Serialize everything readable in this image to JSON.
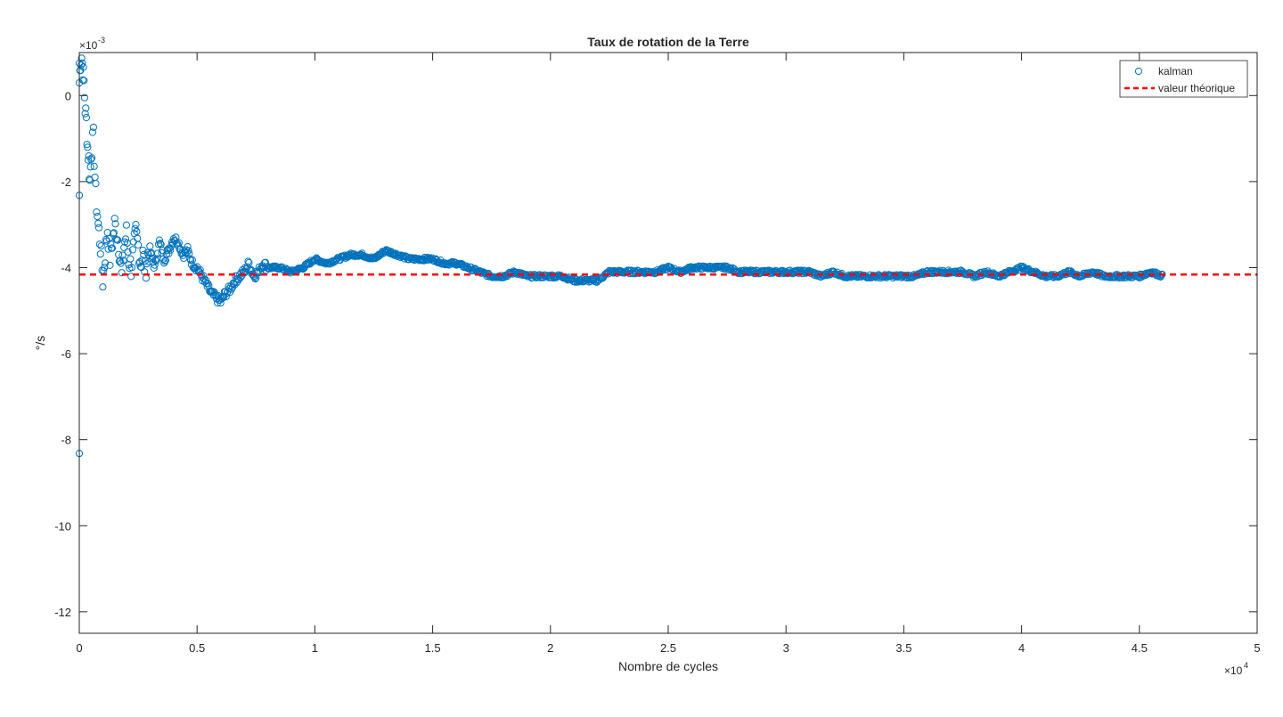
{
  "chart_data": {
    "type": "scatter",
    "title": "Taux de rotation de la Terre",
    "xlabel": "Nombre de cycles",
    "ylabel": "°/s",
    "xlim": [
      0,
      50000
    ],
    "ylim": [
      -0.0125,
      0.001
    ],
    "x_exponent_base": "×10",
    "x_exponent_power": "4",
    "y_exponent_base": "×10",
    "y_exponent_power": "-3",
    "x_tick_values": [
      0,
      5000,
      10000,
      15000,
      20000,
      25000,
      30000,
      35000,
      40000,
      45000,
      50000
    ],
    "x_tick_labels": [
      "0",
      "0.5",
      "1",
      "1.5",
      "2",
      "2.5",
      "3",
      "3.5",
      "4",
      "4.5",
      "5"
    ],
    "y_tick_values": [
      0,
      -0.002,
      -0.004,
      -0.006,
      -0.008,
      -0.01,
      -0.012
    ],
    "y_tick_labels": [
      "0",
      "-2",
      "-4",
      "-6",
      "-8",
      "-10",
      "-12"
    ],
    "grid": false,
    "legend_position": "top-right",
    "colors": {
      "kalman": "#0072BD",
      "theory": "#FF0000",
      "axis": "#262626"
    },
    "series": [
      {
        "name": "kalman",
        "marker": "circle",
        "outliers": [
          {
            "x": 0,
            "y": -0.00832
          },
          {
            "x": 0,
            "y": -0.00232
          },
          {
            "x": 0,
            "y": 0.00075
          }
        ],
        "x": [
          0,
          50,
          100,
          150,
          200,
          250,
          300,
          350,
          400,
          450,
          500,
          600,
          700,
          800,
          900,
          1000,
          1100,
          1200,
          1300,
          1400,
          1500,
          1600,
          1700,
          1800,
          1900,
          2000,
          2100,
          2200,
          2300,
          2400,
          2500,
          2600,
          2700,
          2800,
          2900,
          3000,
          3200,
          3400,
          3600,
          3800,
          4000,
          4200,
          4400,
          4600,
          4800,
          5000,
          5200,
          5400,
          5600,
          5800,
          6000,
          6100,
          6200,
          6400,
          6600,
          6800,
          7000,
          7200,
          7400,
          7600,
          7800,
          8000,
          8500,
          9000,
          9500,
          10000,
          10500,
          11000,
          11500,
          12000,
          12500,
          13000,
          13500,
          14000,
          14500,
          15000,
          15500,
          16000,
          16500,
          17000,
          17500,
          18000,
          18500,
          19000,
          19500,
          20000,
          20500,
          21000,
          21500,
          22000,
          22500,
          23000,
          23500,
          24000,
          24500,
          25000,
          25500,
          26000,
          26500,
          27000,
          27500,
          28000,
          28500,
          29000,
          29500,
          30000,
          30500,
          31000,
          31500,
          32000,
          32500,
          33000,
          33500,
          34000,
          34500,
          35000,
          35500,
          36000,
          36500,
          37000,
          37500,
          38000,
          38500,
          39000,
          39500,
          40000,
          40500,
          41000,
          41500,
          42000,
          42500,
          43000,
          43500,
          44000,
          44500,
          45000,
          45500,
          46000
        ],
        "y": [
          0.0003,
          0.0008,
          0.0009,
          0.0006,
          0.0003,
          -0.0003,
          -0.0006,
          -0.0012,
          -0.0015,
          -0.002,
          -0.0013,
          -0.001,
          -0.0023,
          -0.003,
          -0.0035,
          -0.0043,
          -0.0037,
          -0.0031,
          -0.0038,
          -0.0034,
          -0.003,
          -0.0032,
          -0.0036,
          -0.0042,
          -0.0035,
          -0.0032,
          -0.0038,
          -0.004,
          -0.0036,
          -0.0032,
          -0.0035,
          -0.0039,
          -0.0037,
          -0.0041,
          -0.0037,
          -0.0036,
          -0.004,
          -0.0034,
          -0.0038,
          -0.0036,
          -0.0033,
          -0.0034,
          -0.0037,
          -0.0036,
          -0.0039,
          -0.004,
          -0.0042,
          -0.0044,
          -0.0046,
          -0.0047,
          -0.0048,
          -0.0047,
          -0.0046,
          -0.0045,
          -0.0043,
          -0.0042,
          -0.0041,
          -0.0039,
          -0.0042,
          -0.0041,
          -0.0039,
          -0.004,
          -0.004,
          -0.0041,
          -0.004,
          -0.0038,
          -0.0039,
          -0.0038,
          -0.0037,
          -0.0037,
          -0.0038,
          -0.0036,
          -0.0037,
          -0.0038,
          -0.0038,
          -0.0038,
          -0.0039,
          -0.0039,
          -0.004,
          -0.0041,
          -0.0042,
          -0.0042,
          -0.0041,
          -0.0042,
          -0.0042,
          -0.0042,
          -0.0042,
          -0.0043,
          -0.0043,
          -0.0043,
          -0.0041,
          -0.0041,
          -0.0041,
          -0.0041,
          -0.0041,
          -0.004,
          -0.0041,
          -0.004,
          -0.004,
          -0.004,
          -0.004,
          -0.0041,
          -0.0041,
          -0.0041,
          -0.0041,
          -0.0041,
          -0.0041,
          -0.0041,
          -0.0042,
          -0.0041,
          -0.0042,
          -0.0042,
          -0.0042,
          -0.0042,
          -0.0042,
          -0.0042,
          -0.0042,
          -0.0041,
          -0.0041,
          -0.0041,
          -0.0041,
          -0.0042,
          -0.0041,
          -0.0042,
          -0.0041,
          -0.004,
          -0.0041,
          -0.0042,
          -0.0042,
          -0.0041,
          -0.0042,
          -0.0041,
          -0.0042,
          -0.0042,
          -0.0042,
          -0.0042,
          -0.0041,
          -0.0042
        ]
      },
      {
        "name": "valeur théorique",
        "style": "dashed",
        "value": -0.00416
      }
    ]
  }
}
